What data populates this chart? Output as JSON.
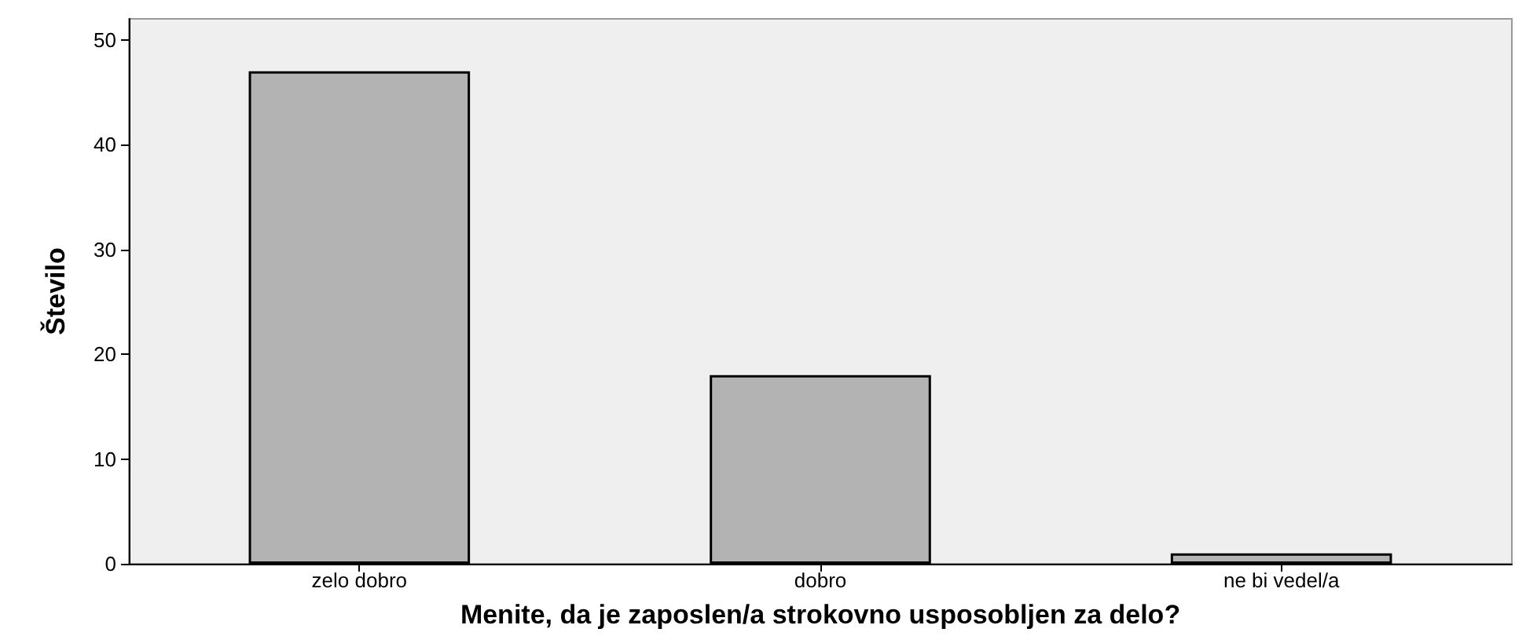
{
  "chart_data": {
    "type": "bar",
    "xlabel": "Menite, da je zaposlen/a strokovno usposobljen za delo?",
    "ylabel": "Število",
    "categories": [
      "zelo dobro",
      "dobro",
      "ne bi vedel/a"
    ],
    "values": [
      47,
      18,
      1
    ],
    "color": "#b3b3b3",
    "ylim": [
      0,
      52
    ],
    "yticks": [
      0,
      10,
      20,
      30,
      40,
      50
    ],
    "grid": false
  }
}
